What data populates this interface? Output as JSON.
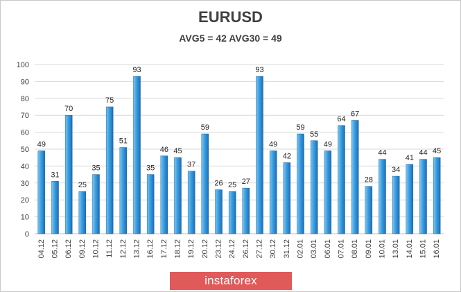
{
  "title": "EURUSD",
  "subtitle": "AVG5 = 42 AVG30 = 49",
  "brand": "instaforex",
  "colors": {
    "bar_top": "#5fb8ec",
    "bar_bottom": "#1f77c2",
    "grid": "#d9d9d9",
    "text": "#404040",
    "brand_bg": "#e05a5a"
  },
  "chart_data": {
    "type": "bar",
    "title": "EURUSD",
    "subtitle": "AVG5 = 42 AVG30 = 49",
    "categories": [
      "04.12",
      "05.12",
      "06.12",
      "09.12",
      "10.12",
      "11.12",
      "12.12",
      "13.12",
      "16.12",
      "17.12",
      "18.12",
      "19.12",
      "20.12",
      "23.12",
      "24.12",
      "26.12",
      "27.12",
      "30.12",
      "31.12",
      "02.01",
      "03.01",
      "06.01",
      "07.01",
      "08.01",
      "09.01",
      "10.01",
      "13.01",
      "14.01",
      "15.01",
      "16.01"
    ],
    "values": [
      49,
      31,
      70,
      25,
      35,
      75,
      51,
      93,
      35,
      46,
      45,
      37,
      59,
      26,
      25,
      27,
      93,
      49,
      42,
      59,
      55,
      49,
      64,
      67,
      28,
      44,
      34,
      41,
      44,
      45
    ],
    "ylim": [
      0,
      100
    ],
    "yticks": [
      0,
      10,
      20,
      30,
      40,
      50,
      60,
      70,
      80,
      90,
      100
    ],
    "grid": true,
    "data_labels": true
  }
}
